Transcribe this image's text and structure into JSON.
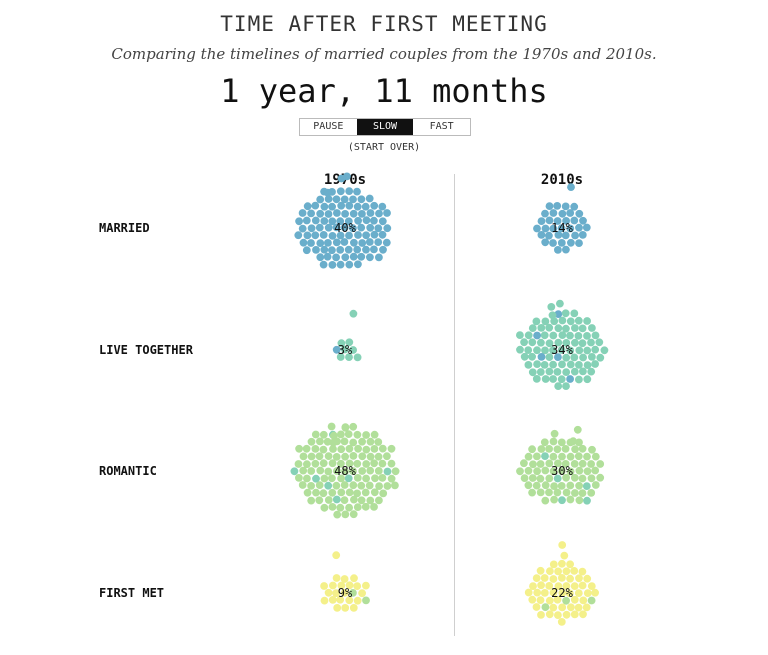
{
  "title": "TIME AFTER FIRST MEETING",
  "subtitle": "Comparing the timelines of married couples from the 1970s and 2010s.",
  "timer": "1 year, 11 months",
  "speed_controls": [
    {
      "label": "PAUSE",
      "active": false
    },
    {
      "label": "SLOW",
      "active": true
    },
    {
      "label": "FAST",
      "active": false
    }
  ],
  "restart_label": "(START OVER)",
  "colors": {
    "married": "#6aaecb",
    "live_together": "#85d1b6",
    "romantic": "#b1df9a",
    "first_met": "#f4f08a"
  },
  "chart_data": {
    "type": "beeswarm",
    "categories": [
      "MARRIED",
      "LIVE TOGETHER",
      "ROMANTIC",
      "FIRST MET"
    ],
    "series": [
      {
        "name": "1970s",
        "values": [
          40,
          3,
          48,
          9
        ]
      },
      {
        "name": "2010s",
        "values": [
          14,
          34,
          30,
          22
        ]
      }
    ],
    "value_labels": {
      "1970s": [
        "40%",
        "3%",
        "48%",
        "9%"
      ],
      "2010s": [
        "14%",
        "34%",
        "30%",
        "22%"
      ]
    }
  }
}
